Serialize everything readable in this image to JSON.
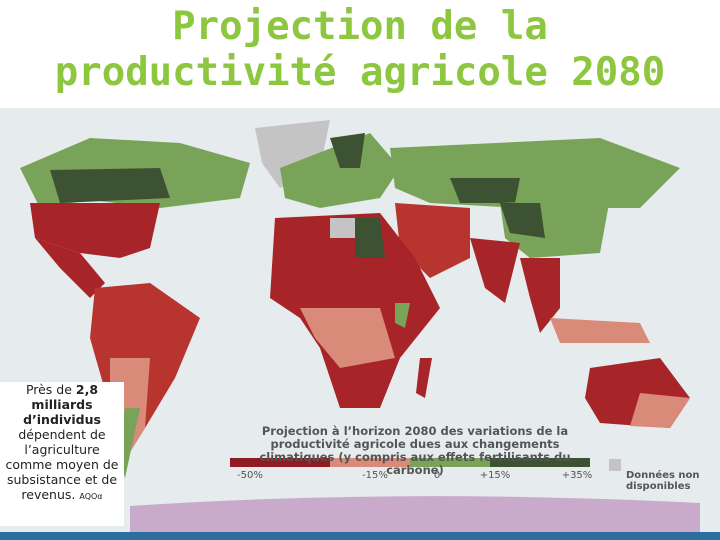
{
  "title": "Projection de la productivité agricole 2080",
  "side_note": {
    "before": "Près de ",
    "highlight": "2,8 milliards d’individus",
    "after": " dépendent de l’agriculture comme moyen de subsistance et de revenus.",
    "source": "AQOα"
  },
  "legend": {
    "title": "Projection à l’horizon 2080 des variations de la productivité agricole dues aux changements climatiques (y compris aux effets fertilisants du carbone)",
    "scale_labels": [
      "-50%",
      "-15%",
      "0",
      "+15%",
      "+35%"
    ],
    "no_data": "Données non disponibles"
  }
}
